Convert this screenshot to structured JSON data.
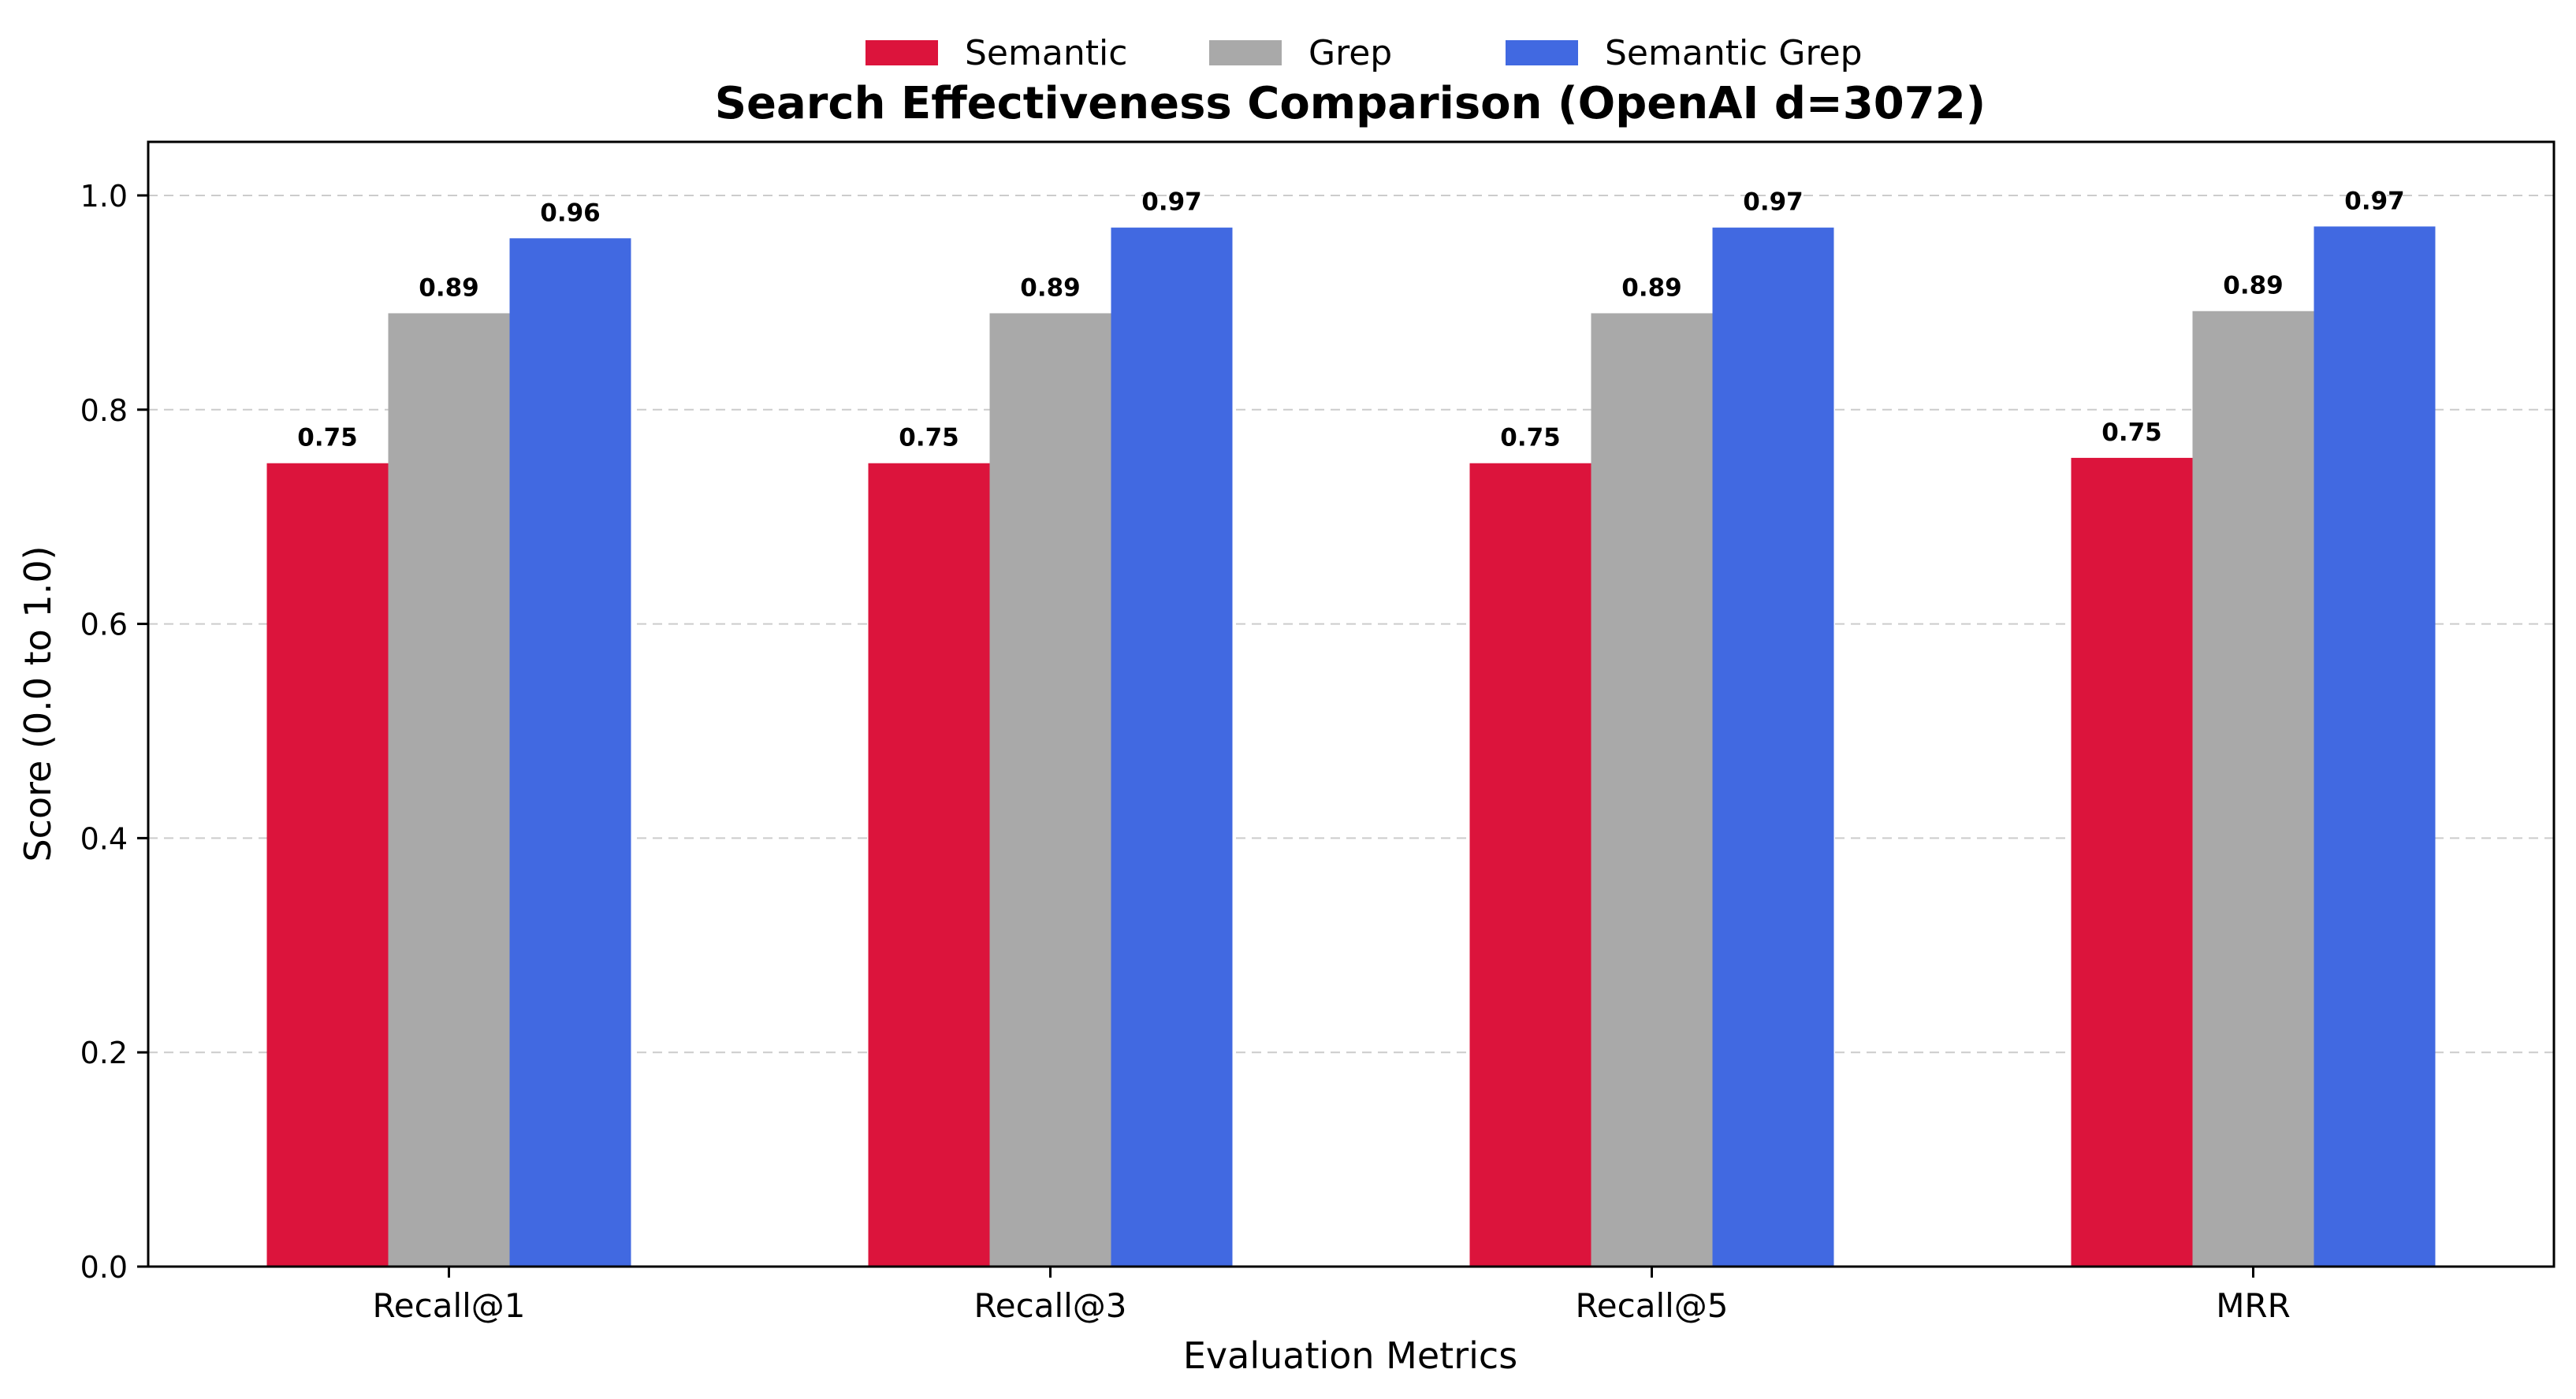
{
  "chart_data": {
    "type": "bar",
    "title": "Search Effectiveness Comparison (OpenAI d=3072)",
    "xlabel": "Evaluation Metrics",
    "ylabel": "Score (0.0 to 1.0)",
    "ylim": [
      0,
      1.05
    ],
    "yticks": [
      "0.0",
      "0.2",
      "0.4",
      "0.6",
      "0.8",
      "1.0"
    ],
    "grid": "y-dashed",
    "legend_position": "top-center",
    "categories": [
      "Recall@1",
      "Recall@3",
      "Recall@5",
      "MRR"
    ],
    "series": [
      {
        "name": "Semantic",
        "color": "#dc143c",
        "values": [
          0.75,
          0.75,
          0.75,
          0.755
        ],
        "labels": [
          "0.75",
          "0.75",
          "0.75",
          "0.75"
        ]
      },
      {
        "name": "Grep",
        "color": "#a9a9a9",
        "values": [
          0.89,
          0.89,
          0.89,
          0.892
        ],
        "labels": [
          "0.89",
          "0.89",
          "0.89",
          "0.89"
        ]
      },
      {
        "name": "Semantic Grep",
        "color": "#4169e1",
        "values": [
          0.96,
          0.97,
          0.97,
          0.971
        ],
        "labels": [
          "0.96",
          "0.97",
          "0.97",
          "0.97"
        ]
      }
    ]
  }
}
